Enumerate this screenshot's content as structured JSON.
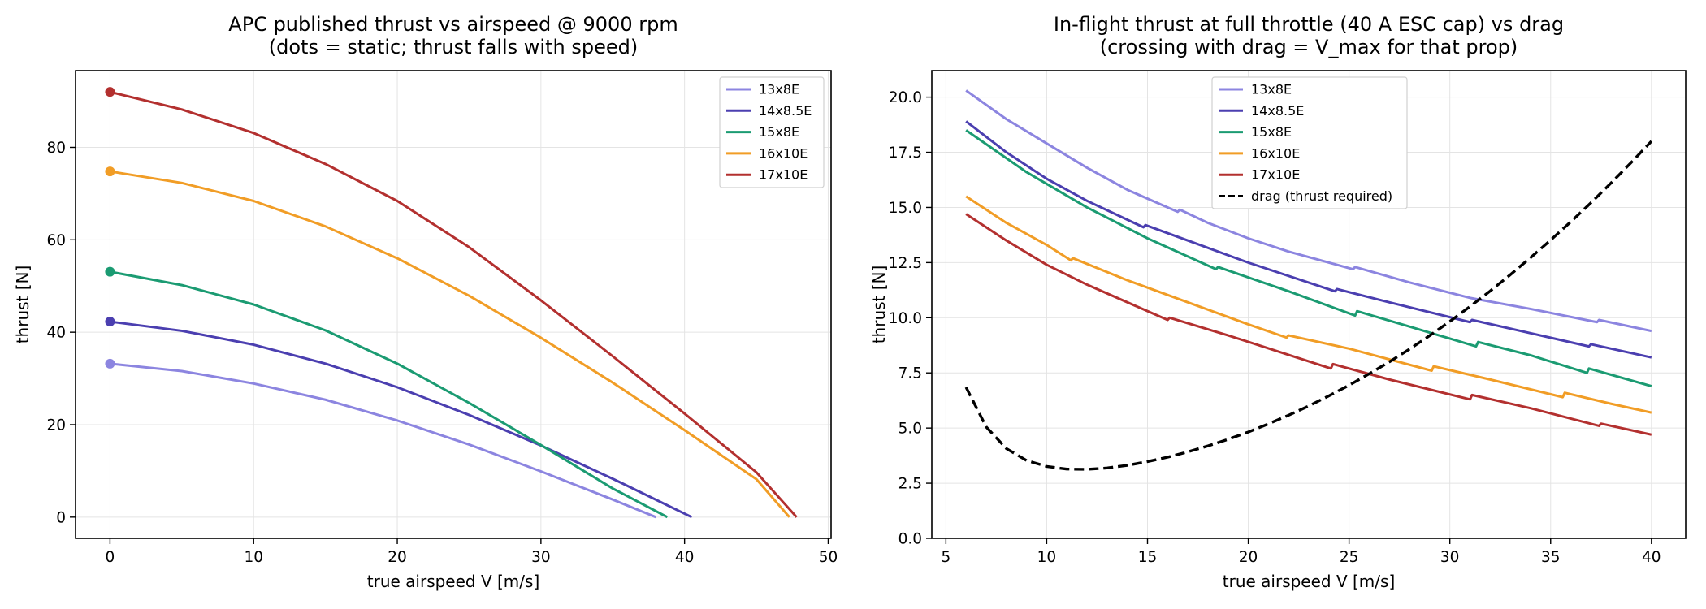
{
  "chart_data": [
    {
      "type": "line",
      "title": "APC published thrust vs airspeed @ 9000 rpm",
      "subtitle": "(dots = static; thrust falls with speed)",
      "xlabel": "true airspeed V [m/s]",
      "ylabel": "thrust [N]",
      "xlim": [
        -2.4,
        50.2
      ],
      "ylim": [
        -4.6,
        96.6
      ],
      "xticks": [
        0,
        10,
        20,
        30,
        40,
        50
      ],
      "yticks": [
        0,
        20,
        40,
        60,
        80
      ],
      "grid": true,
      "legend": "top-right",
      "markers": "static thrust dots at V=0",
      "series": [
        {
          "name": "13x8E",
          "color": "#8c85e0",
          "x": [
            0,
            5,
            10,
            15,
            20,
            25,
            30,
            35,
            38
          ],
          "y": [
            33.2,
            31.6,
            28.9,
            25.4,
            20.9,
            15.7,
            9.9,
            3.8,
            0
          ]
        },
        {
          "name": "14x8.5E",
          "color": "#4b3fb0",
          "x": [
            0,
            5,
            10,
            15,
            20,
            25,
            30,
            35,
            40.5
          ],
          "y": [
            42.3,
            40.3,
            37.3,
            33.2,
            28.1,
            22.1,
            15.5,
            8.3,
            0
          ]
        },
        {
          "name": "15x8E",
          "color": "#1b9b72",
          "x": [
            0,
            5,
            10,
            15,
            20,
            25,
            30,
            35,
            38.8
          ],
          "y": [
            53.1,
            50.2,
            46.0,
            40.4,
            33.2,
            24.7,
            15.6,
            6.2,
            0
          ]
        },
        {
          "name": "16x10E",
          "color": "#f19d26",
          "x": [
            0,
            5,
            10,
            15,
            20,
            25,
            30,
            35,
            40,
            45,
            47.3
          ],
          "y": [
            74.8,
            72.3,
            68.4,
            62.9,
            56.0,
            47.9,
            38.8,
            29.1,
            18.8,
            8.2,
            0
          ]
        },
        {
          "name": "17x10E",
          "color": "#b3302f",
          "x": [
            0,
            5,
            10,
            15,
            20,
            25,
            30,
            35,
            40,
            45,
            47.8
          ],
          "y": [
            92.0,
            88.2,
            83.1,
            76.4,
            68.4,
            58.4,
            46.9,
            34.8,
            22.4,
            9.7,
            0
          ]
        }
      ]
    },
    {
      "type": "line",
      "title": "In-flight thrust at full throttle (40 A ESC cap) vs drag",
      "subtitle": "(crossing with drag = V_max for that prop)",
      "xlabel": "true airspeed V [m/s]",
      "ylabel": "thrust [N]",
      "xlim": [
        4.3,
        41.7
      ],
      "ylim": [
        0,
        21.2
      ],
      "xticks": [
        5,
        10,
        15,
        20,
        25,
        30,
        35,
        40
      ],
      "yticks": [
        0.0,
        2.5,
        5.0,
        7.5,
        10.0,
        12.5,
        15.0,
        17.5,
        20.0
      ],
      "ytick_labels": [
        "0.0",
        "2.5",
        "5.0",
        "7.5",
        "10.0",
        "12.5",
        "15.0",
        "17.5",
        "20.0"
      ],
      "grid": true,
      "legend": "top-center",
      "series": [
        {
          "name": "13x8E",
          "color": "#8c85e0",
          "x": [
            6,
            8,
            10,
            12,
            14,
            16.5,
            16.6,
            18,
            20,
            22,
            25.2,
            25.3,
            28,
            31,
            34,
            37.3,
            37.4,
            40
          ],
          "y": [
            20.3,
            19.0,
            17.9,
            16.8,
            15.8,
            14.8,
            14.9,
            14.3,
            13.6,
            13.0,
            12.2,
            12.3,
            11.6,
            10.9,
            10.4,
            9.8,
            9.9,
            9.4
          ]
        },
        {
          "name": "14x8.5E",
          "color": "#4b3fb0",
          "x": [
            6,
            8,
            10,
            12,
            14.8,
            14.9,
            17,
            20,
            24.3,
            24.4,
            27,
            31,
            31.1,
            34,
            36.9,
            37.0,
            40
          ],
          "y": [
            18.9,
            17.5,
            16.3,
            15.3,
            14.1,
            14.2,
            13.5,
            12.5,
            11.2,
            11.3,
            10.7,
            9.8,
            9.9,
            9.3,
            8.7,
            8.8,
            8.2
          ]
        },
        {
          "name": "15x8E",
          "color": "#1b9b72",
          "x": [
            6,
            9,
            12,
            15,
            18.4,
            18.5,
            22,
            25.3,
            25.4,
            28,
            31.3,
            31.4,
            34,
            36.8,
            36.9,
            40
          ],
          "y": [
            18.5,
            16.6,
            15.0,
            13.6,
            12.2,
            12.3,
            11.2,
            10.1,
            10.3,
            9.6,
            8.7,
            8.9,
            8.3,
            7.5,
            7.7,
            6.9
          ]
        },
        {
          "name": "16x10E",
          "color": "#f19d26",
          "x": [
            6,
            8,
            10,
            11.2,
            11.3,
            14,
            17,
            20,
            21.9,
            22.0,
            25,
            29.1,
            29.2,
            32,
            35.6,
            35.7,
            38,
            40
          ],
          "y": [
            15.5,
            14.3,
            13.3,
            12.6,
            12.7,
            11.7,
            10.7,
            9.7,
            9.1,
            9.2,
            8.6,
            7.6,
            7.8,
            7.2,
            6.4,
            6.6,
            6.1,
            5.7
          ]
        },
        {
          "name": "17x10E",
          "color": "#b3302f",
          "x": [
            6,
            8,
            10,
            12,
            16.0,
            16.1,
            19,
            24.1,
            24.2,
            27,
            31.0,
            31.1,
            34,
            37.4,
            37.5,
            40
          ],
          "y": [
            14.7,
            13.5,
            12.4,
            11.5,
            9.9,
            10.0,
            9.2,
            7.7,
            7.9,
            7.2,
            6.3,
            6.5,
            5.9,
            5.1,
            5.2,
            4.7
          ]
        },
        {
          "name": "drag (thrust required)",
          "color": "#000000",
          "dashed": true,
          "x": [
            6,
            7,
            8,
            9,
            10,
            11,
            12,
            13,
            14,
            15,
            16,
            17,
            18,
            19,
            20,
            21,
            22,
            23,
            24,
            25,
            26,
            27,
            28,
            29,
            30,
            31,
            32,
            33,
            34,
            35,
            36,
            37,
            38,
            39,
            40
          ],
          "y": [
            6.85,
            5.05,
            4.07,
            3.53,
            3.26,
            3.14,
            3.13,
            3.19,
            3.31,
            3.48,
            3.68,
            3.92,
            4.19,
            4.49,
            4.82,
            5.19,
            5.58,
            6.0,
            6.46,
            6.94,
            7.46,
            8.0,
            8.58,
            9.19,
            9.83,
            10.51,
            11.21,
            11.95,
            12.72,
            13.52,
            14.35,
            15.21,
            16.11,
            17.04,
            18.0
          ]
        }
      ]
    }
  ]
}
